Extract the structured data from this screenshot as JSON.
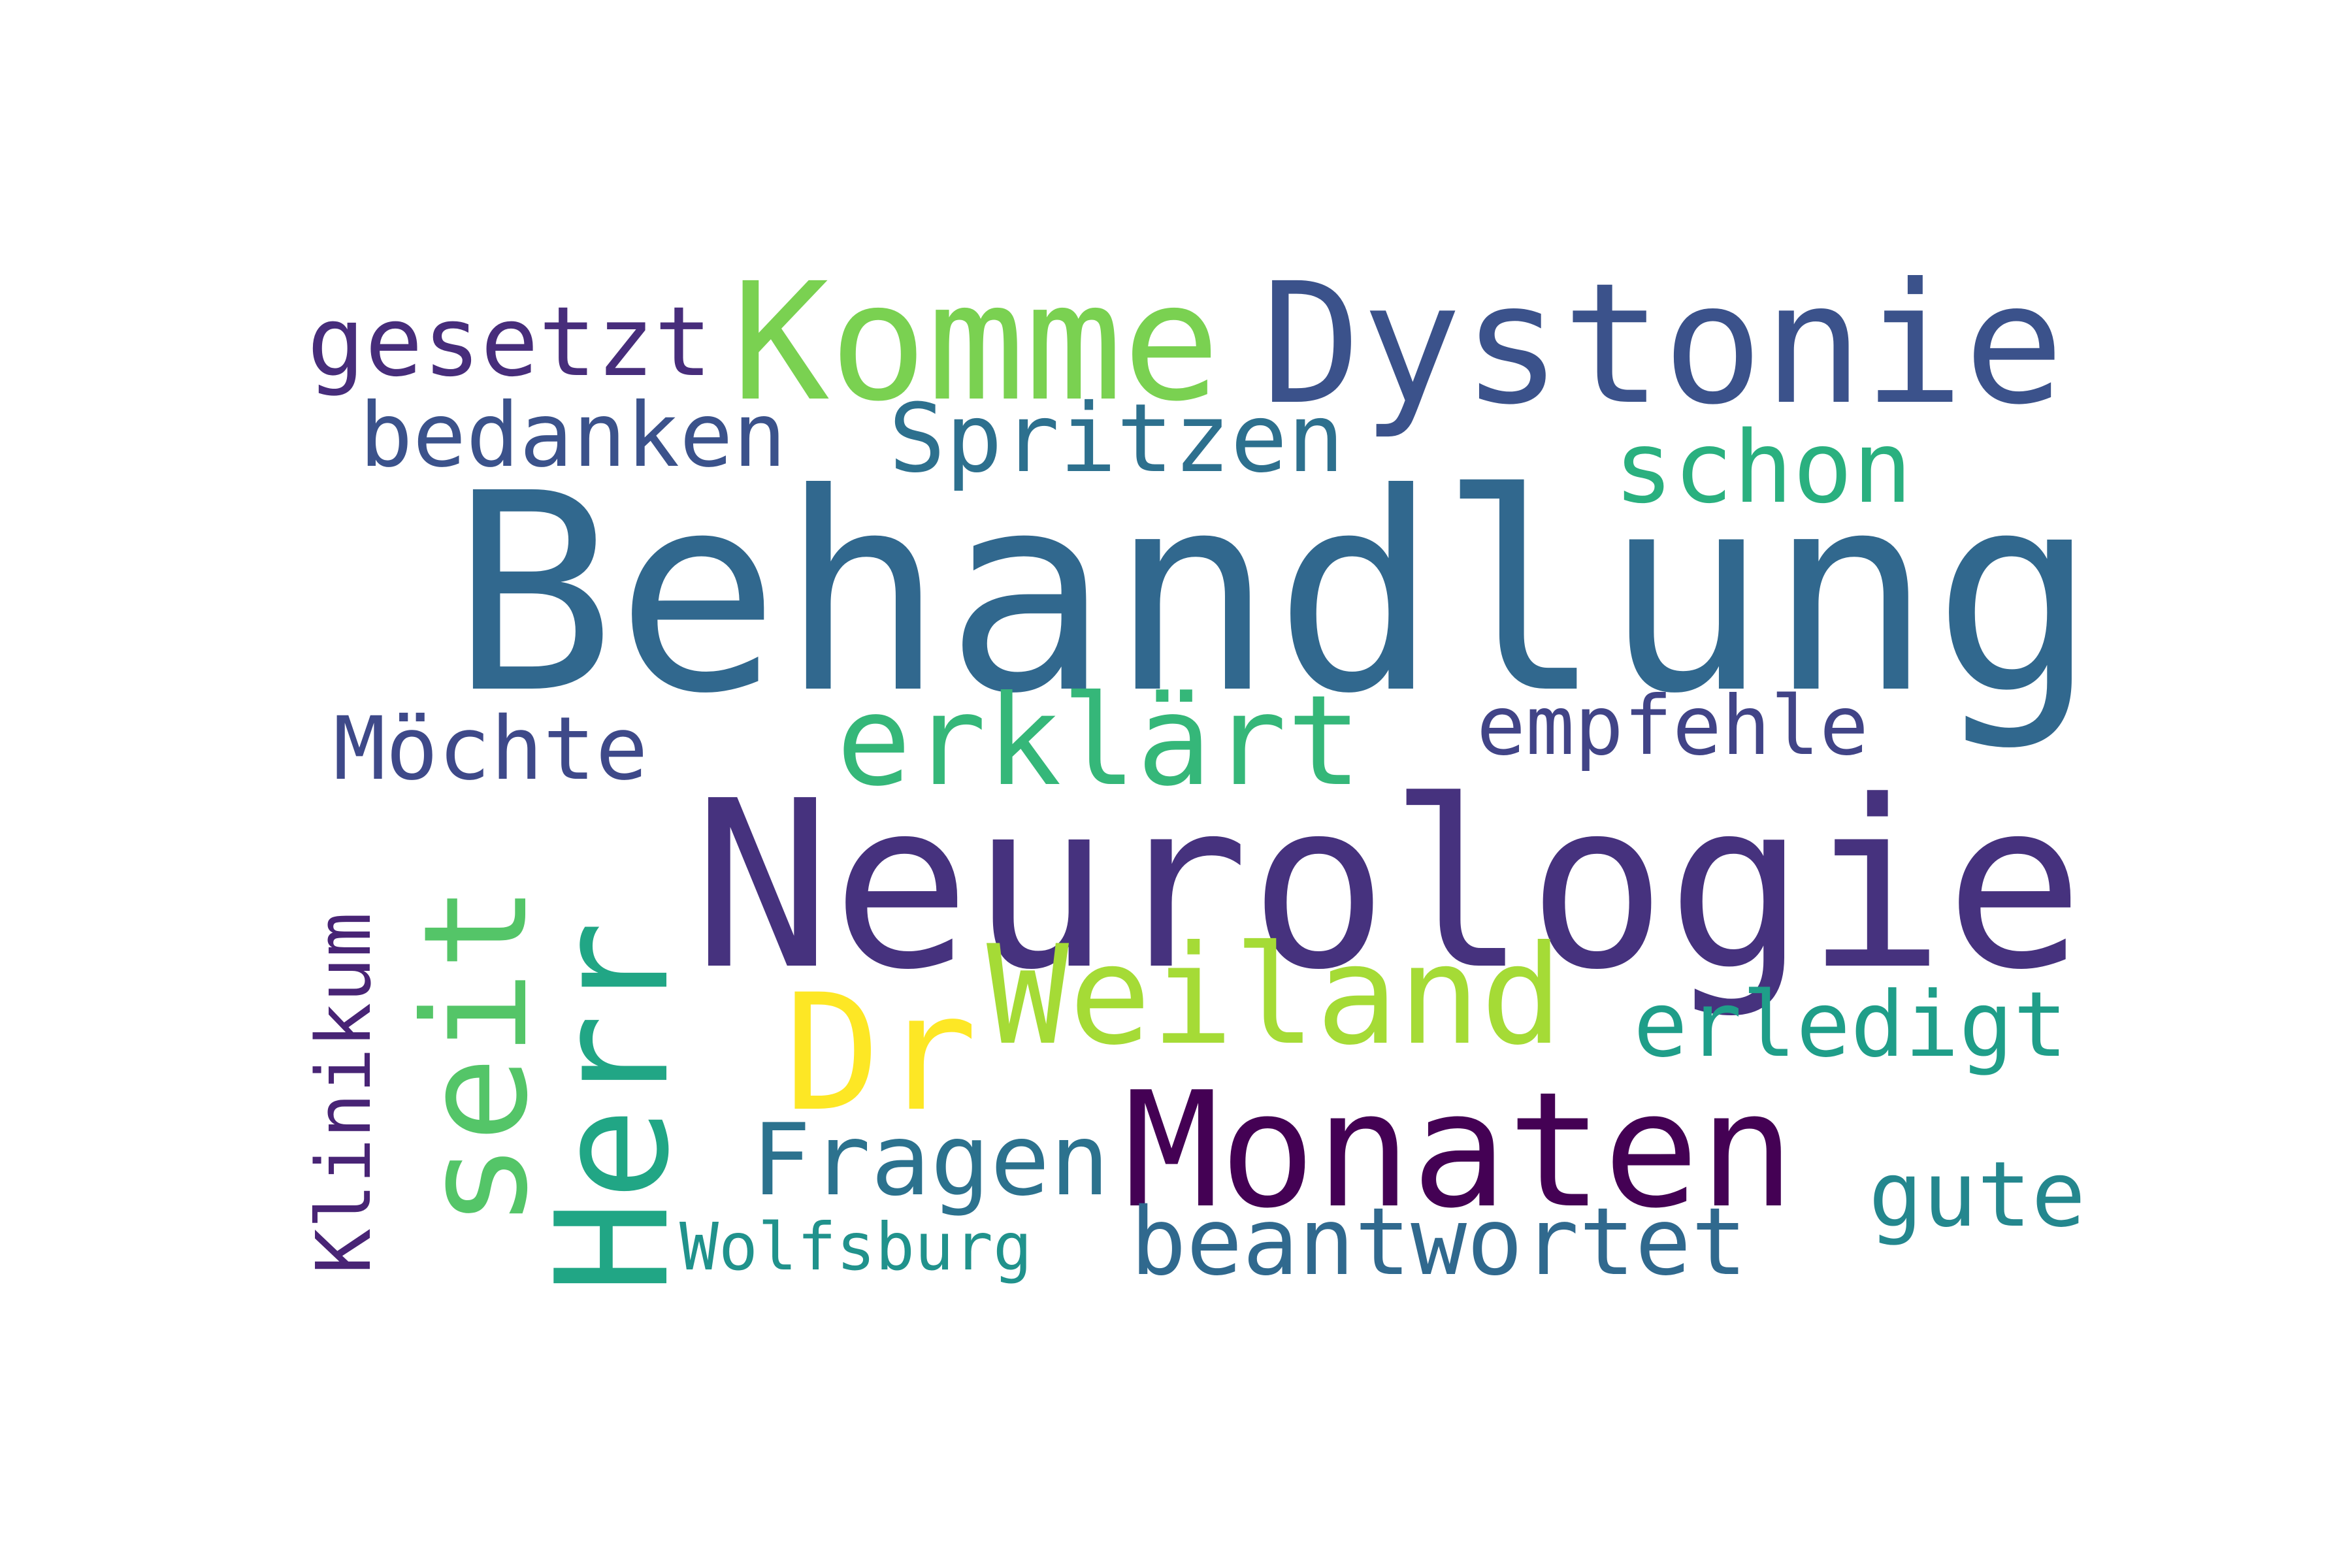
{
  "words": {
    "behandlung": {
      "text": "Behandlung",
      "color": "#31688e"
    },
    "neurologie": {
      "text": "Neurologie",
      "color": "#46327e"
    },
    "monaten": {
      "text": "Monaten",
      "color": "#440154"
    },
    "dystonie": {
      "text": "Dystonie",
      "color": "#3b528b"
    },
    "komme": {
      "text": "Komme",
      "color": "#7ad151"
    },
    "weiland": {
      "text": "Weiland",
      "color": "#a5db36"
    },
    "dr": {
      "text": "Dr",
      "color": "#fde725"
    },
    "erklaert": {
      "text": "erklärt",
      "color": "#35b779"
    },
    "seit": {
      "text": "seit",
      "color": "#54c568"
    },
    "herr": {
      "text": "Herr",
      "color": "#21a685"
    },
    "schon": {
      "text": "schon",
      "color": "#2ab07f"
    },
    "spritzen": {
      "text": "Spritzen",
      "color": "#2d708e"
    },
    "gesetzt": {
      "text": "gesetzt",
      "color": "#472d7b"
    },
    "bedanken": {
      "text": "bedanken",
      "color": "#3b528b"
    },
    "moechte": {
      "text": "Möchte",
      "color": "#3e4989"
    },
    "empfehle": {
      "text": "empfehle",
      "color": "#414487"
    },
    "erledigt": {
      "text": "erledigt",
      "color": "#1f9e89"
    },
    "fragen": {
      "text": "Fragen",
      "color": "#2c728e"
    },
    "gute": {
      "text": "gute",
      "color": "#24878e"
    },
    "beantwortet": {
      "text": "beantwortet",
      "color": "#30698e"
    },
    "wolfsburg": {
      "text": "Wolfsburg",
      "color": "#20928c"
    },
    "klinikum": {
      "text": "Klinikum",
      "color": "#482475"
    }
  }
}
